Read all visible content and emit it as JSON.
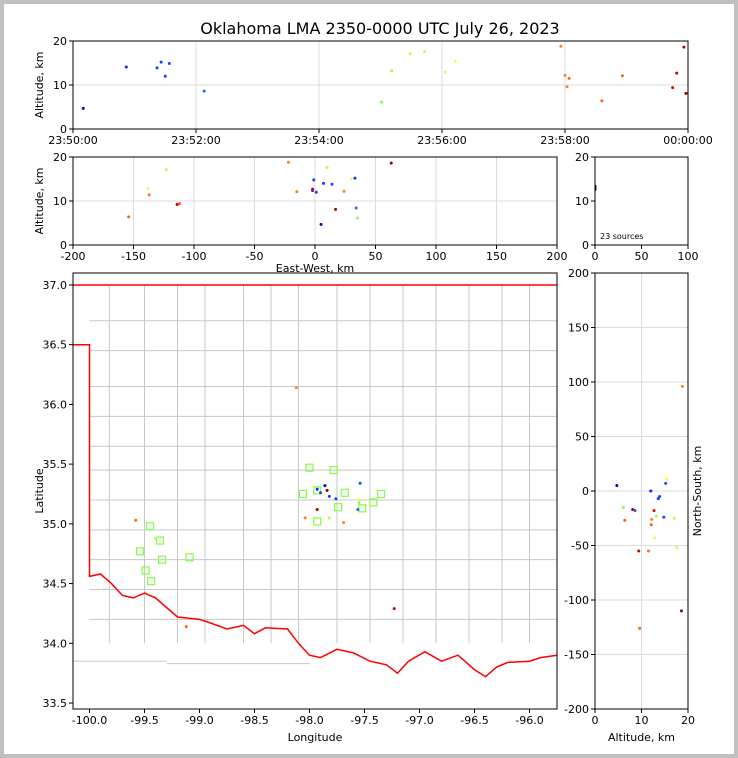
{
  "title": "Oklahoma LMA 2350-0000 UTC July 26, 2023",
  "colors": {
    "border": "#c0c0c0",
    "county": "#c8c8c8",
    "state": "#ff0000",
    "station": "#80ff40"
  },
  "chart_data": [
    {
      "id": "time_altitude",
      "type": "scatter",
      "xlabel": "",
      "ylabel": "Altitude, km",
      "xlim": [
        "23:50:00",
        "00:00:00"
      ],
      "ylim": [
        0,
        20
      ],
      "xticks": [
        "23:50:00",
        "23:52:00",
        "23:54:00",
        "23:56:00",
        "23:58:00",
        "00:00:00"
      ],
      "yticks": [
        0,
        10,
        20
      ],
      "grid": true,
      "points": [
        {
          "t": "23:50:10",
          "z": 4.7,
          "c": "#0000cc"
        },
        {
          "t": "23:50:52",
          "z": 14.1,
          "c": "#1020ff"
        },
        {
          "t": "23:51:22",
          "z": 13.9,
          "c": "#1040ff"
        },
        {
          "t": "23:51:26",
          "z": 15.2,
          "c": "#1040ff"
        },
        {
          "t": "23:51:30",
          "z": 12.0,
          "c": "#1040ff"
        },
        {
          "t": "23:51:34",
          "z": 14.9,
          "c": "#1050ff"
        },
        {
          "t": "23:52:08",
          "z": 8.6,
          "c": "#2060ff"
        },
        {
          "t": "23:55:01",
          "z": 6.1,
          "c": "#80ff40"
        },
        {
          "t": "23:55:11",
          "z": 13.2,
          "c": "#a0ff40"
        },
        {
          "t": "23:55:29",
          "z": 17.1,
          "c": "#c0ff40"
        },
        {
          "t": "23:55:43",
          "z": 17.6,
          "c": "#d0ff40"
        },
        {
          "t": "23:56:03",
          "z": 12.9,
          "c": "#e0ff40"
        },
        {
          "t": "23:56:13",
          "z": 15.4,
          "c": "#f0ff40"
        },
        {
          "t": "23:57:56",
          "z": 18.8,
          "c": "#ff8020"
        },
        {
          "t": "23:58:00",
          "z": 12.2,
          "c": "#ff8020"
        },
        {
          "t": "23:58:02",
          "z": 9.6,
          "c": "#ff8020"
        },
        {
          "t": "23:58:04",
          "z": 11.5,
          "c": "#ff7020"
        },
        {
          "t": "23:58:36",
          "z": 6.4,
          "c": "#ff6010"
        },
        {
          "t": "23:58:56",
          "z": 12.1,
          "c": "#ff6010"
        },
        {
          "t": "23:59:45",
          "z": 9.4,
          "c": "#dd0000"
        },
        {
          "t": "23:59:49",
          "z": 12.7,
          "c": "#cc0000"
        },
        {
          "t": "23:59:56",
          "z": 18.6,
          "c": "#bb0000"
        },
        {
          "t": "23:59:58",
          "z": 8.1,
          "c": "#990000"
        }
      ]
    },
    {
      "id": "ew_altitude",
      "type": "scatter",
      "xlabel": "East-West, km",
      "ylabel": "Altitude, km",
      "xlim": [
        -200,
        200
      ],
      "ylim": [
        0,
        20
      ],
      "xticks": [
        -200,
        -150,
        -100,
        -50,
        0,
        50,
        100,
        150,
        200
      ],
      "yticks": [
        0,
        10,
        20
      ],
      "grid": true,
      "points": [
        {
          "x": 5,
          "z": 4.7,
          "c": "#0000cc"
        },
        {
          "x": -2,
          "z": 12.4,
          "c": "#1020ff"
        },
        {
          "x": 1,
          "z": 12.0,
          "c": "#1040ff"
        },
        {
          "x": 7,
          "z": 14.0,
          "c": "#1040ff"
        },
        {
          "x": -1,
          "z": 14.8,
          "c": "#1040ff"
        },
        {
          "x": 14,
          "z": 13.8,
          "c": "#1050ff"
        },
        {
          "x": 33,
          "z": 15.2,
          "c": "#1030ff"
        },
        {
          "x": 34,
          "z": 8.4,
          "c": "#2060ff"
        },
        {
          "x": 35,
          "z": 6.1,
          "c": "#80ff40"
        },
        {
          "x": 10,
          "z": 17.6,
          "c": "#b0ff40"
        },
        {
          "x": -123,
          "z": 17.1,
          "c": "#c0ff40"
        },
        {
          "x": -138,
          "z": 12.8,
          "c": "#e0ff40"
        },
        {
          "x": 30,
          "z": 15.0,
          "c": "#f0ff40"
        },
        {
          "x": -22,
          "z": 18.8,
          "c": "#ff8020"
        },
        {
          "x": -15,
          "z": 12.1,
          "c": "#ff8020"
        },
        {
          "x": 24,
          "z": 12.2,
          "c": "#ff8020"
        },
        {
          "x": -137,
          "z": 11.4,
          "c": "#ff7020"
        },
        {
          "x": -154,
          "z": 6.4,
          "c": "#ff6010"
        },
        {
          "x": -112,
          "z": 9.4,
          "c": "#ff6010"
        },
        {
          "x": -114,
          "z": 9.2,
          "c": "#cc0000"
        },
        {
          "x": 17,
          "z": 8.1,
          "c": "#aa0000"
        },
        {
          "x": 63,
          "z": 18.6,
          "c": "#880000"
        },
        {
          "x": -2,
          "z": 12.7,
          "c": "#dd0000"
        }
      ]
    },
    {
      "id": "altitude_histogram",
      "type": "line",
      "xlabel": "",
      "ylabel": "",
      "xlim": [
        0,
        100
      ],
      "ylim": [
        0,
        20
      ],
      "xticks": [
        0,
        50,
        100
      ],
      "yticks": [
        0,
        10,
        20
      ],
      "grid": false,
      "annotation": "23 sources",
      "points": [
        {
          "x": 0,
          "z": 0.0
        },
        {
          "x": 0,
          "z": 12.5
        },
        {
          "x": 1,
          "z": 12.5
        },
        {
          "x": 1,
          "z": 13.5
        },
        {
          "x": 0,
          "z": 13.5
        },
        {
          "x": 0,
          "z": 20.0
        }
      ]
    },
    {
      "id": "plan_view",
      "type": "scatter",
      "xlabel": "Longitude",
      "ylabel": "Latitude",
      "xlim": [
        -100.15,
        -95.75
      ],
      "ylim": [
        33.45,
        37.1
      ],
      "xticks": [
        -100.0,
        -99.5,
        -99.0,
        -98.5,
        -98.0,
        -97.5,
        -97.0,
        -96.5,
        -96.0
      ],
      "yticks": [
        33.5,
        34.0,
        34.5,
        35.0,
        35.5,
        36.0,
        36.5,
        37.0
      ],
      "grid": false,
      "points": [
        {
          "lon": -97.86,
          "lat": 35.32,
          "c": "#0000cc"
        },
        {
          "lon": -97.93,
          "lat": 35.29,
          "c": "#1020ff"
        },
        {
          "lon": -97.82,
          "lat": 35.23,
          "c": "#1040ff"
        },
        {
          "lon": -97.9,
          "lat": 35.26,
          "c": "#1040ff"
        },
        {
          "lon": -97.76,
          "lat": 35.21,
          "c": "#1040ff"
        },
        {
          "lon": -97.54,
          "lat": 35.34,
          "c": "#1050ff"
        },
        {
          "lon": -97.56,
          "lat": 35.12,
          "c": "#2060ff"
        },
        {
          "lon": -97.55,
          "lat": 35.18,
          "c": "#80ff40"
        },
        {
          "lon": -97.82,
          "lat": 35.05,
          "c": "#b0ff40"
        },
        {
          "lon": -99.4,
          "lat": 34.88,
          "c": "#c0ff40"
        },
        {
          "lon": -97.55,
          "lat": 35.2,
          "c": "#f0ff40"
        },
        {
          "lon": -98.12,
          "lat": 36.14,
          "c": "#ff8020"
        },
        {
          "lon": -98.04,
          "lat": 35.05,
          "c": "#ff8020"
        },
        {
          "lon": -97.69,
          "lat": 35.01,
          "c": "#ff8020"
        },
        {
          "lon": -99.12,
          "lat": 34.14,
          "c": "#ff6010"
        },
        {
          "lon": -99.58,
          "lat": 35.03,
          "c": "#ff6010"
        },
        {
          "lon": -97.23,
          "lat": 34.29,
          "c": "#cc0000"
        },
        {
          "lon": -97.93,
          "lat": 35.12,
          "c": "#aa0000"
        },
        {
          "lon": -97.84,
          "lat": 35.28,
          "c": "#880000"
        }
      ],
      "stations": [
        {
          "lon": -98.0,
          "lat": 35.47
        },
        {
          "lon": -97.78,
          "lat": 35.45
        },
        {
          "lon": -98.06,
          "lat": 35.25
        },
        {
          "lon": -97.93,
          "lat": 35.28
        },
        {
          "lon": -97.68,
          "lat": 35.26
        },
        {
          "lon": -97.35,
          "lat": 35.25
        },
        {
          "lon": -97.42,
          "lat": 35.18
        },
        {
          "lon": -97.74,
          "lat": 35.14
        },
        {
          "lon": -97.52,
          "lat": 35.13
        },
        {
          "lon": -97.93,
          "lat": 35.02
        },
        {
          "lon": -99.45,
          "lat": 34.98
        },
        {
          "lon": -99.36,
          "lat": 34.86
        },
        {
          "lon": -99.54,
          "lat": 34.77
        },
        {
          "lon": -99.34,
          "lat": 34.7
        },
        {
          "lon": -99.09,
          "lat": 34.72
        },
        {
          "lon": -99.49,
          "lat": 34.61
        },
        {
          "lon": -99.44,
          "lat": 34.52
        }
      ]
    },
    {
      "id": "altitude_ns",
      "type": "scatter",
      "xlabel": "Altitude, km",
      "ylabel": "North-South, km",
      "xlim": [
        0,
        20
      ],
      "ylim": [
        -200,
        200
      ],
      "xticks": [
        0,
        10,
        20
      ],
      "yticks": [
        -200,
        -150,
        -100,
        -50,
        0,
        50,
        100,
        150,
        200
      ],
      "grid": true,
      "points": [
        {
          "z": 4.7,
          "y": 5,
          "c": "#0000cc"
        },
        {
          "z": 12.0,
          "y": 0,
          "c": "#1020ff"
        },
        {
          "z": 13.9,
          "y": -5,
          "c": "#1040ff"
        },
        {
          "z": 13.6,
          "y": -7,
          "c": "#1040ff"
        },
        {
          "z": 15.2,
          "y": 7,
          "c": "#1050ff"
        },
        {
          "z": 8.6,
          "y": -18,
          "c": "#2060ff"
        },
        {
          "z": 14.8,
          "y": -24,
          "c": "#1040ff"
        },
        {
          "z": 6.1,
          "y": -15,
          "c": "#80ff40"
        },
        {
          "z": 13.2,
          "y": -23,
          "c": "#a0ff40"
        },
        {
          "z": 17.1,
          "y": -25,
          "c": "#c0ff40"
        },
        {
          "z": 17.6,
          "y": -52,
          "c": "#d0ff40"
        },
        {
          "z": 12.9,
          "y": -43,
          "c": "#e0ff40"
        },
        {
          "z": 15.4,
          "y": 11,
          "c": "#f0ff40"
        },
        {
          "z": 18.8,
          "y": 96,
          "c": "#ff8020"
        },
        {
          "z": 12.2,
          "y": -26,
          "c": "#ff8020"
        },
        {
          "z": 6.4,
          "y": -27,
          "c": "#ff6010"
        },
        {
          "z": 11.5,
          "y": -55,
          "c": "#ff7020"
        },
        {
          "z": 9.6,
          "y": -126,
          "c": "#ff6010"
        },
        {
          "z": 12.1,
          "y": -31,
          "c": "#ff6010"
        },
        {
          "z": 9.4,
          "y": -55,
          "c": "#cc0000"
        },
        {
          "z": 12.7,
          "y": -18,
          "c": "#dd0000"
        },
        {
          "z": 18.6,
          "y": -110,
          "c": "#990000"
        },
        {
          "z": 8.1,
          "y": -17,
          "c": "#aa0000"
        }
      ]
    }
  ]
}
